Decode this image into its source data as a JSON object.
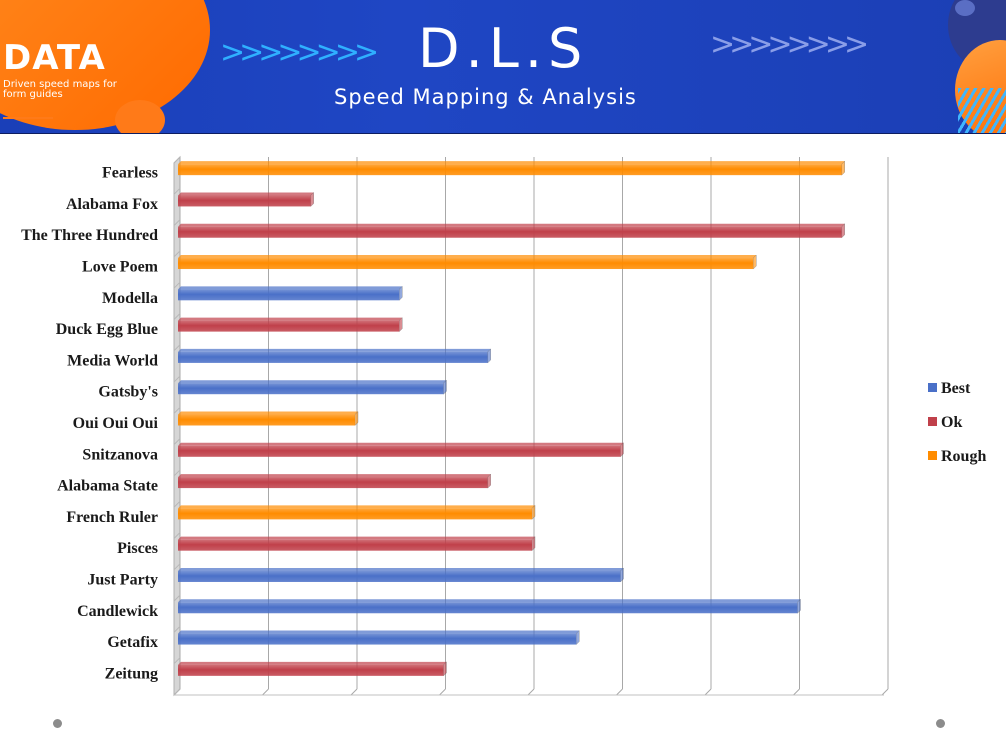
{
  "banner": {
    "logo": "DATA",
    "tagline": "Driven speed maps for form guides",
    "title": "D.L.S",
    "subtitle": "Speed Mapping & Analysis",
    "chevrons": ">>>>>>>>"
  },
  "colors": {
    "best": "#4a70c8",
    "ok": "#c0404a",
    "rough": "#ff8c00"
  },
  "chart_data": {
    "type": "bar",
    "orientation": "horizontal",
    "categories": [
      "Fearless",
      "Alabama Fox",
      "The Three Hundred",
      "Love Poem",
      "Modella",
      "Duck Egg Blue",
      "Media World",
      "Gatsby's",
      "Oui Oui Oui",
      "Snitzanova",
      "Alabama State",
      "French Ruler",
      "Pisces",
      "Just Party",
      "Candlewick",
      "Getafix",
      "Zeitung"
    ],
    "values": [
      7.5,
      1.5,
      7.5,
      6.5,
      2.5,
      2.5,
      3.5,
      3,
      2,
      5,
      3.5,
      4,
      4,
      5,
      7,
      4.5,
      3
    ],
    "ratings": [
      "Rough",
      "Ok",
      "Ok",
      "Rough",
      "Best",
      "Ok",
      "Best",
      "Best",
      "Rough",
      "Ok",
      "Ok",
      "Rough",
      "Ok",
      "Best",
      "Best",
      "Best",
      "Ok"
    ],
    "legend": [
      {
        "name": "Best",
        "color": "#4a70c8"
      },
      {
        "name": "Ok",
        "color": "#c0404a"
      },
      {
        "name": "Rough",
        "color": "#ff8c00"
      }
    ],
    "legend_position": "right",
    "xlim": [
      0,
      8
    ],
    "grid": true,
    "tick_labels_shown": false
  }
}
